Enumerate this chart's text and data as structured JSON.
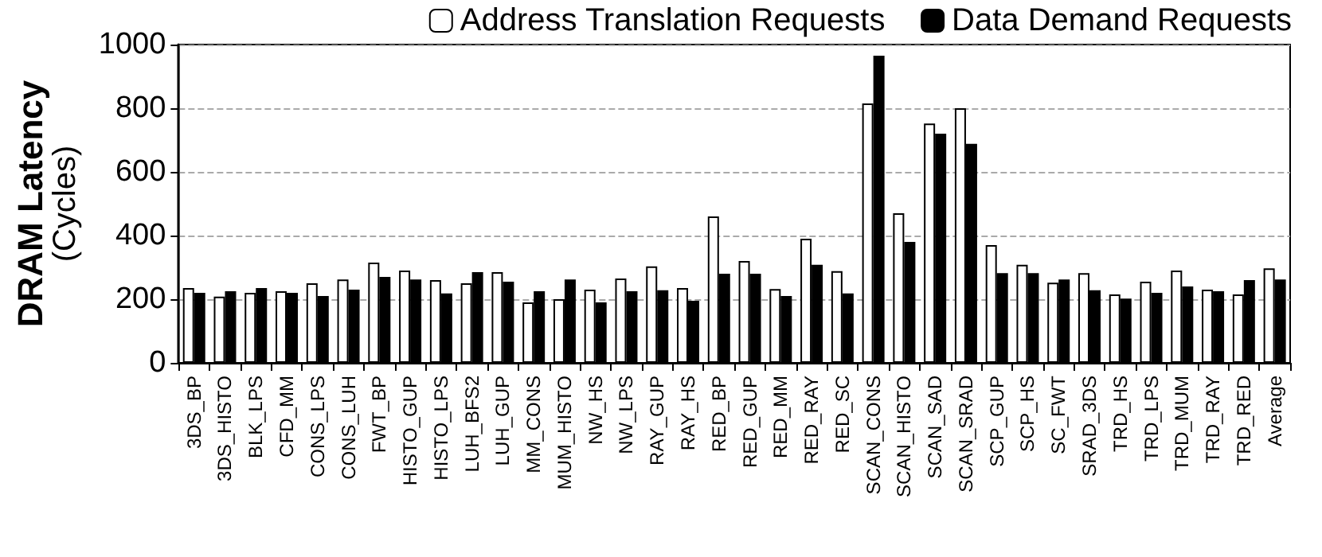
{
  "chart_data": {
    "type": "bar",
    "ylabel": "DRAM Latency\n(Cycles)",
    "categories": [
      "3DS_BP",
      "3DS_HISTO",
      "BLK_LPS",
      "CFD_MM",
      "CONS_LPS",
      "CONS_LUH",
      "FWT_BP",
      "HISTO_GUP",
      "HISTO_LPS",
      "LUH_BFS2",
      "LUH_GUP",
      "MM_CONS",
      "MUM_HISTO",
      "NW_HS",
      "NW_LPS",
      "RAY_GUP",
      "RAY_HS",
      "RED_BP",
      "RED_GUP",
      "RED_MM",
      "RED_RAY",
      "RED_SC",
      "SCAN_CONS",
      "SCAN_HISTO",
      "SCAN_SAD",
      "SCAN_SRAD",
      "SCP_GUP",
      "SCP_HS",
      "SC_FWT",
      "SRAD_3DS",
      "TRD_HS",
      "TRD_LPS",
      "TRD_MUM",
      "TRD_RAY",
      "TRD_RED",
      "Average"
    ],
    "series": [
      {
        "name": "Address Translation Requests",
        "color": "#ffffff",
        "values": [
          235,
          208,
          220,
          225,
          250,
          262,
          315,
          290,
          260,
          250,
          285,
          190,
          200,
          230,
          265,
          303,
          235,
          460,
          320,
          232,
          390,
          288,
          815,
          470,
          752,
          800,
          370,
          308,
          252,
          282,
          215,
          255,
          290,
          230,
          215,
          297
        ]
      },
      {
        "name": "Data Demand Requests",
        "color": "#000000",
        "values": [
          220,
          225,
          235,
          220,
          210,
          230,
          270,
          262,
          218,
          285,
          255,
          225,
          262,
          190,
          225,
          228,
          195,
          280,
          280,
          210,
          308,
          218,
          965,
          380,
          720,
          688,
          282,
          282,
          262,
          228,
          202,
          220,
          240,
          225,
          260,
          262
        ]
      }
    ],
    "ylim": [
      0,
      1000
    ],
    "yticks": [
      0,
      200,
      400,
      600,
      800,
      1000
    ],
    "grid": "y",
    "legend": "top"
  }
}
